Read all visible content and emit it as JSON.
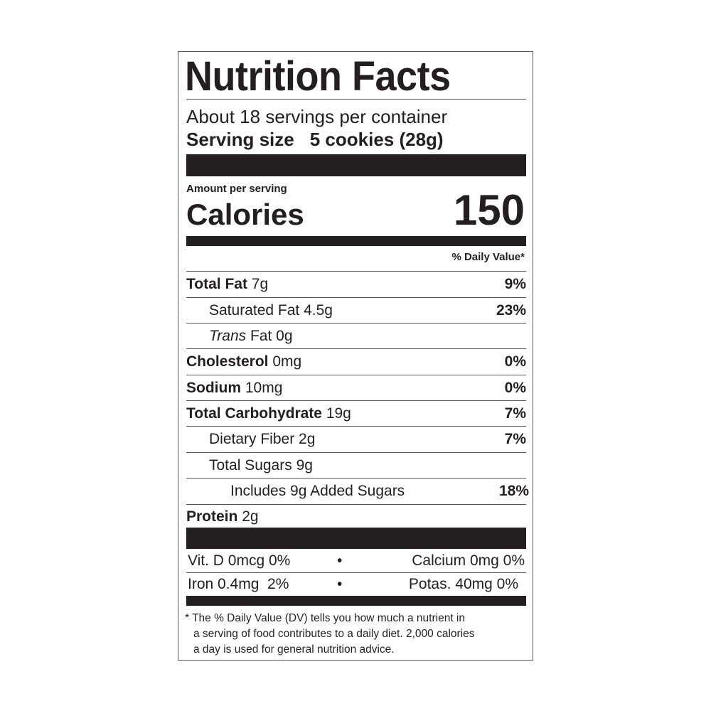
{
  "title": "Nutrition Facts",
  "servings_per_container": "About 18 servings per container",
  "serving_size_label": "Serving size",
  "serving_size_value": "5 cookies (28g)",
  "amount_per_serving": "Amount per serving",
  "calories_label": "Calories",
  "calories_value": "150",
  "daily_value_header": "% Daily Value*",
  "nutrients": [
    {
      "name": "Total Fat",
      "amount": "7g",
      "dv": "9%"
    },
    {
      "name": "Saturated Fat 4.5g",
      "amount": "",
      "dv": "23%"
    },
    {
      "name": "Trans",
      "amount": "Fat 0g",
      "dv": ""
    },
    {
      "name": "Cholesterol",
      "amount": "0mg",
      "dv": "0%"
    },
    {
      "name": "Sodium",
      "amount": "10mg",
      "dv": "0%"
    },
    {
      "name": "Total Carbohydrate",
      "amount": "19g",
      "dv": "7%"
    },
    {
      "name": "Dietary Fiber 2g",
      "amount": "",
      "dv": "7%"
    },
    {
      "name": "Total Sugars 9g",
      "amount": "",
      "dv": ""
    },
    {
      "name": "Includes 9g Added Sugars",
      "amount": "",
      "dv": "18%"
    },
    {
      "name": "Protein",
      "amount": "2g",
      "dv": ""
    }
  ],
  "vitamins": [
    {
      "left": "Vit. D 0mcg 0%",
      "separator": "•",
      "right": "Calcium 0mg 0%"
    },
    {
      "left": "Iron 0.4mg  2%",
      "separator": "•",
      "right": "Potas. 40mg 0%"
    }
  ],
  "footnote": [
    "* The % Daily Value (DV) tells you how much a nutrient in",
    "a serving of food contributes to a daily diet. 2,000 calories",
    "a day is used for general nutrition advice."
  ]
}
